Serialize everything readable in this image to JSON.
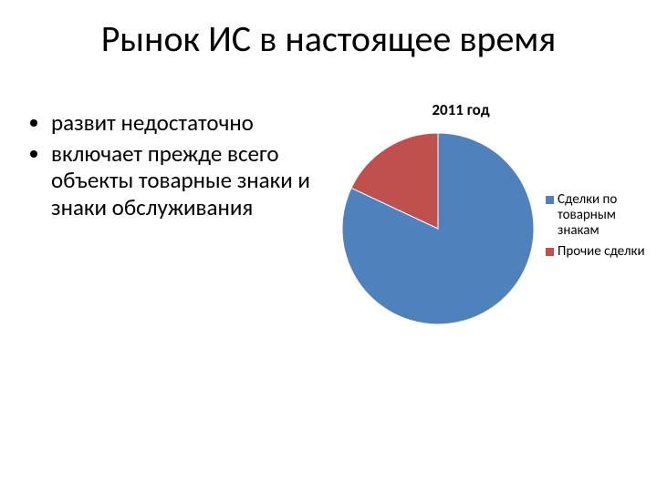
{
  "title": "Рынок ИС в настоящее время",
  "bullets": {
    "items": [
      "развит недостаточно",
      "включает прежде всего объекты товарные знаки и знаки обслуживания"
    ]
  },
  "chart": {
    "type": "pie",
    "title": "2011 год",
    "title_fontsize": 17,
    "title_fontweight": "bold",
    "background_color": "#ffffff",
    "series": [
      {
        "label": "Сделки по товарным знакам",
        "value": 82,
        "color": "#4f81bd"
      },
      {
        "label": "Прочие сделки",
        "value": 18,
        "color": "#c0504d"
      }
    ],
    "start_angle_deg": -90,
    "radius": 105,
    "stroke": "#ffffff",
    "stroke_width": 1,
    "legend": {
      "position": "right",
      "fontsize": 15,
      "swatch_size": 9
    }
  }
}
